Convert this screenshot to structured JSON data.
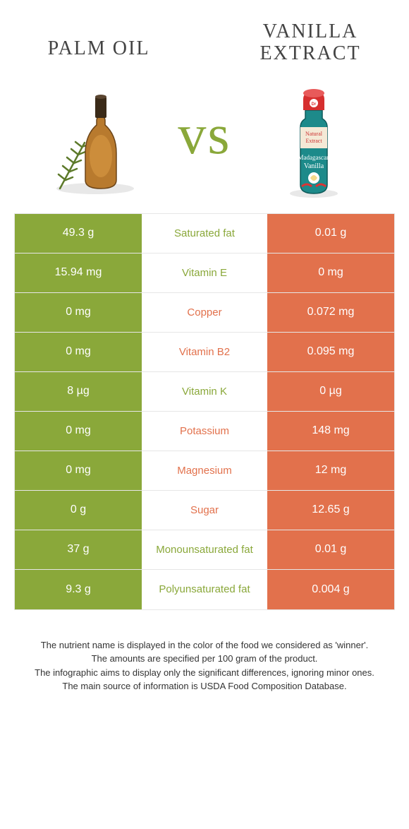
{
  "colors": {
    "green": "#8aa83a",
    "orange": "#e2714c",
    "border": "#e6e6e6",
    "text": "#333333",
    "title": "#444444"
  },
  "fonts": {
    "title_family": "Times New Roman, serif",
    "title_size_pt": 21,
    "body_family": "Arial, sans-serif",
    "cell_size_pt": 12,
    "notes_size_pt": 10
  },
  "left_title": "Palm oil",
  "right_title": "Vanilla\nextract",
  "vs_label": "vs",
  "rows": [
    {
      "left": "49.3 g",
      "name": "Saturated fat",
      "right": "0.01 g",
      "winner": "left"
    },
    {
      "left": "15.94 mg",
      "name": "Vitamin E",
      "right": "0 mg",
      "winner": "left"
    },
    {
      "left": "0 mg",
      "name": "Copper",
      "right": "0.072 mg",
      "winner": "right"
    },
    {
      "left": "0 mg",
      "name": "Vitamin B2",
      "right": "0.095 mg",
      "winner": "right"
    },
    {
      "left": "8 µg",
      "name": "Vitamin K",
      "right": "0 µg",
      "winner": "left"
    },
    {
      "left": "0 mg",
      "name": "Potassium",
      "right": "148 mg",
      "winner": "right"
    },
    {
      "left": "0 mg",
      "name": "Magnesium",
      "right": "12 mg",
      "winner": "right"
    },
    {
      "left": "0 g",
      "name": "Sugar",
      "right": "12.65 g",
      "winner": "right"
    },
    {
      "left": "37 g",
      "name": "Monounsaturated fat",
      "right": "0.01 g",
      "winner": "left"
    },
    {
      "left": "9.3 g",
      "name": "Polyunsaturated fat",
      "right": "0.004 g",
      "winner": "left"
    }
  ],
  "notes": [
    "The nutrient name is displayed in the color of the food we considered as 'winner'.",
    "The amounts are specified per 100 gram of the product.",
    "The infographic aims to display only the significant differences, ignoring minor ones.",
    "The main source of information is USDA Food Composition Database."
  ]
}
